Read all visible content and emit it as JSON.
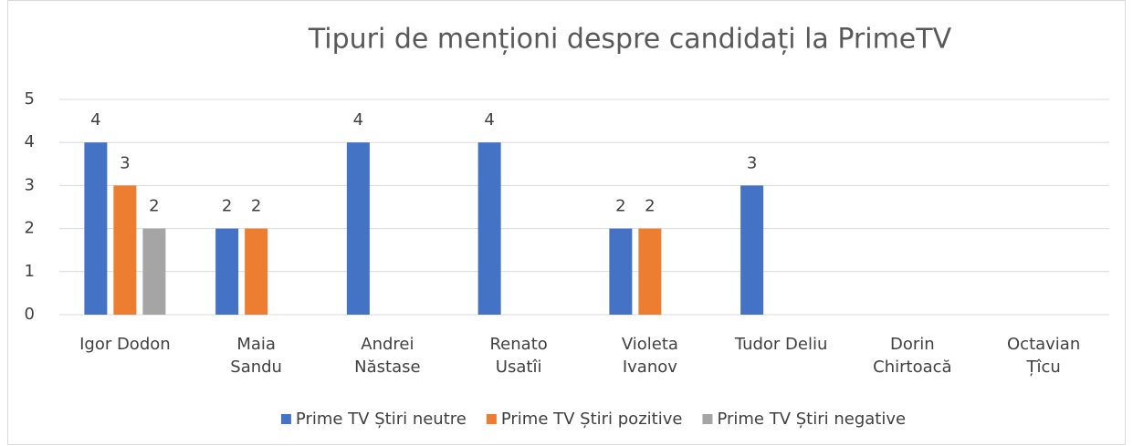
{
  "chart_data": {
    "type": "bar",
    "title": "Tipuri de menționi despre candidați la PrimeTV",
    "categories": [
      "Igor Dodon",
      "Maia Sandu",
      "Andrei Năstase",
      "Renato Usatîi",
      "Violeta Ivanov",
      "Tudor Deliu",
      "Dorin Chirtoacă",
      "Octavian Țîcu"
    ],
    "series": [
      {
        "name": "Prime TV Știri neutre",
        "color": "#4472c4",
        "values": [
          4,
          2,
          4,
          4,
          2,
          3,
          null,
          null
        ]
      },
      {
        "name": "Prime TV Știri pozitive",
        "color": "#ed7d31",
        "values": [
          3,
          2,
          null,
          null,
          2,
          null,
          null,
          null
        ]
      },
      {
        "name": "Prime TV Știri negative",
        "color": "#a5a5a5",
        "values": [
          2,
          null,
          null,
          null,
          null,
          null,
          null,
          null
        ]
      }
    ],
    "ylim": [
      0,
      5
    ],
    "yticks": [
      0,
      1,
      2,
      3,
      4,
      5
    ],
    "grid": true,
    "legend": "bottom"
  }
}
